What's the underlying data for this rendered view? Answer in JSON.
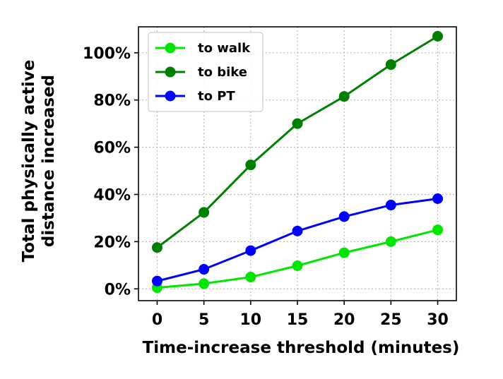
{
  "chart_data": {
    "type": "line",
    "title": "",
    "xlabel": "Time-increase threshold (minutes)",
    "ylabel": [
      "Total physically active",
      "distance increased"
    ],
    "x": [
      0,
      5,
      10,
      15,
      20,
      25,
      30
    ],
    "xlim": [
      -2,
      32
    ],
    "ylim": [
      -5,
      111
    ],
    "xticks": [
      0,
      5,
      10,
      15,
      20,
      25,
      30
    ],
    "yticks": [
      0,
      20,
      40,
      60,
      80,
      100
    ],
    "ytick_labels": [
      "0%",
      "20%",
      "40%",
      "60%",
      "80%",
      "100%"
    ],
    "grid": true,
    "legend_position": "top-left",
    "series": [
      {
        "name": "to walk",
        "color": "#00e600",
        "values": [
          0.5,
          2.2,
          5,
          9.8,
          15.3,
          20,
          25
        ]
      },
      {
        "name": "to bike",
        "color": "#008000",
        "values": [
          17.5,
          32.4,
          52.5,
          70,
          81.5,
          95,
          107
        ]
      },
      {
        "name": "to PT",
        "color": "#0000ff",
        "values": [
          3.3,
          8.3,
          16.2,
          24.5,
          30.6,
          35.5,
          38.2
        ]
      }
    ]
  }
}
